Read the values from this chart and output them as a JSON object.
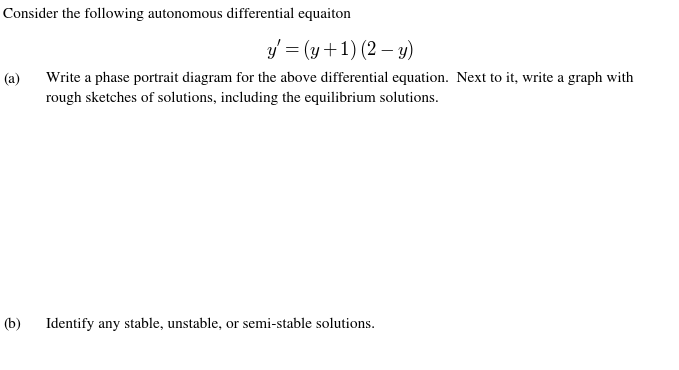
{
  "background_color": "#ffffff",
  "figsize": [
    6.79,
    3.7
  ],
  "dpi": 100,
  "title_text": "Consider the following autonomous differential equaiton",
  "equation_text": "$y^{\\prime} = (y+1)\\,(2-y)$",
  "part_a_label": "(a)",
  "part_a_line1": "Write a phase portrait diagram for the above differential equation.  Next to it, write a graph with",
  "part_a_line2": "rough sketches of solutions, including the equilibrium solutions.",
  "part_b_label": "(b)",
  "part_b_text": "Identify any stable, unstable, or semi-stable solutions.",
  "text_fontsize": 11.0,
  "eq_fontsize": 13.5,
  "text_color": "#000000"
}
